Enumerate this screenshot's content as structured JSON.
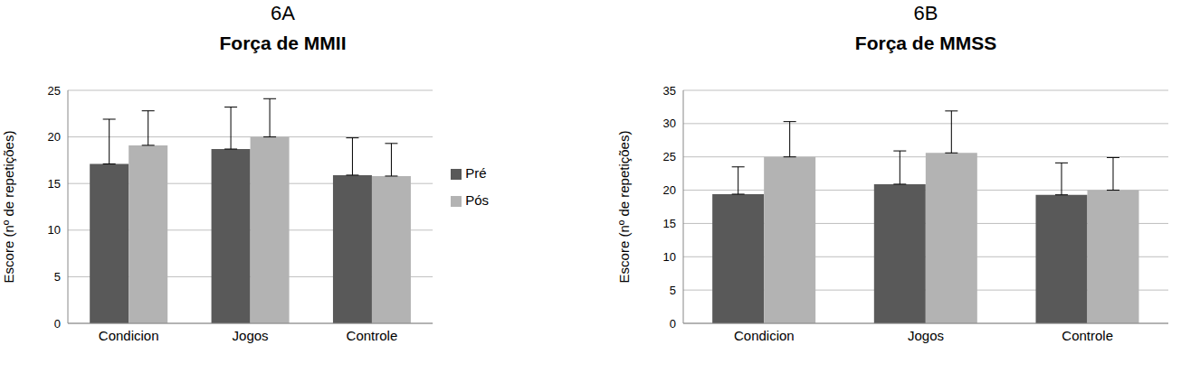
{
  "chart_data": [
    {
      "type": "bar",
      "annotations": [
        "6A"
      ],
      "title": "Força de MMII",
      "y_label": "Escore (nº de repetições)",
      "categories": [
        "Condicion",
        "Jogos",
        "Controle"
      ],
      "series": [
        {
          "name": "Pré",
          "color": "#595959",
          "values": [
            17.1,
            18.7,
            15.9
          ],
          "errors": [
            4.8,
            4.5,
            4.0
          ]
        },
        {
          "name": "Pós",
          "color": "#b3b3b3",
          "values": [
            19.1,
            20.0,
            15.8
          ],
          "errors": [
            3.7,
            4.1,
            3.5
          ]
        }
      ],
      "ylim": [
        0,
        25
      ],
      "yticks": [
        0,
        5,
        10,
        15,
        20,
        25
      ],
      "grid": true,
      "legend": "right"
    },
    {
      "type": "bar",
      "annotations": [
        "6B"
      ],
      "title": "Força de MMSS",
      "y_label": "Escore (nº de repetições)",
      "categories": [
        "Condicion",
        "Jogos",
        "Controle"
      ],
      "series": [
        {
          "name": "Pré",
          "color": "#595959",
          "values": [
            19.4,
            20.9,
            19.3
          ],
          "errors": [
            4.1,
            5.0,
            4.8
          ]
        },
        {
          "name": "Pós",
          "color": "#b3b3b3",
          "values": [
            25.0,
            25.6,
            20.0
          ],
          "errors": [
            5.3,
            6.3,
            4.9
          ]
        }
      ],
      "ylim": [
        0,
        35
      ],
      "yticks": [
        0,
        5,
        10,
        15,
        20,
        25,
        30,
        35
      ],
      "grid": true
    }
  ]
}
